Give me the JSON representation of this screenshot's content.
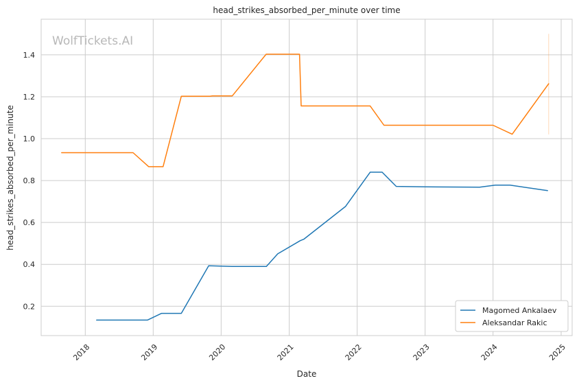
{
  "watermark": "WolfTickets.AI",
  "chart_data": {
    "type": "line",
    "title": "head_strikes_absorbed_per_minute over time",
    "xlabel": "Date",
    "ylabel": "head_strikes_absorbed_per_minute",
    "x_ticks": [
      "2018",
      "2019",
      "2020",
      "2021",
      "2022",
      "2023",
      "2024",
      "2025"
    ],
    "y_ticks": [
      "0.2",
      "0.4",
      "0.6",
      "0.8",
      "1.0",
      "1.2",
      "1.4"
    ],
    "xlim": [
      "2017-05-09",
      "2025-03-01"
    ],
    "ylim": [
      0.06,
      1.57
    ],
    "grid": true,
    "legend_position": "lower-right",
    "colors": {
      "Magomed Ankalaev": "#1f77b4",
      "Aleksandar Rakic": "#ff7f0e"
    },
    "series": [
      {
        "name": "Magomed Ankalaev",
        "points": [
          [
            "2018-03-03",
            0.134
          ],
          [
            "2018-12-01",
            0.134
          ],
          [
            "2019-02-15",
            0.166
          ],
          [
            "2019-06-01",
            0.166
          ],
          [
            "2019-10-26",
            0.393
          ],
          [
            "2020-02-29",
            0.39
          ],
          [
            "2020-08-31",
            0.39
          ],
          [
            "2020-10-31",
            0.45
          ],
          [
            "2021-03-01",
            0.513
          ],
          [
            "2021-03-20",
            0.52
          ],
          [
            "2021-10-30",
            0.676
          ],
          [
            "2022-03-12",
            0.84
          ],
          [
            "2022-05-15",
            0.84
          ],
          [
            "2022-07-30",
            0.772
          ],
          [
            "2023-01-01",
            0.77
          ],
          [
            "2023-10-21",
            0.768
          ],
          [
            "2024-01-13",
            0.778
          ],
          [
            "2024-04-01",
            0.778
          ],
          [
            "2024-10-20",
            0.752
          ]
        ]
      },
      {
        "name": "Aleksandar Rakic",
        "points": [
          [
            "2017-08-27",
            0.933
          ],
          [
            "2018-09-15",
            0.933
          ],
          [
            "2018-12-08",
            0.866
          ],
          [
            "2019-02-23",
            0.866
          ],
          [
            "2019-06-01",
            1.202
          ],
          [
            "2019-11-02",
            1.202
          ],
          [
            "2019-11-15",
            1.204
          ],
          [
            "2020-03-01",
            1.204
          ],
          [
            "2020-08-30",
            1.403
          ],
          [
            "2021-02-25",
            1.403
          ],
          [
            "2021-03-06",
            1.156
          ],
          [
            "2022-03-12",
            1.156
          ],
          [
            "2022-05-25",
            1.064
          ],
          [
            "2024-01-01",
            1.064
          ],
          [
            "2024-04-13",
            1.021
          ],
          [
            "2024-10-26",
            1.262
          ]
        ]
      }
    ]
  }
}
